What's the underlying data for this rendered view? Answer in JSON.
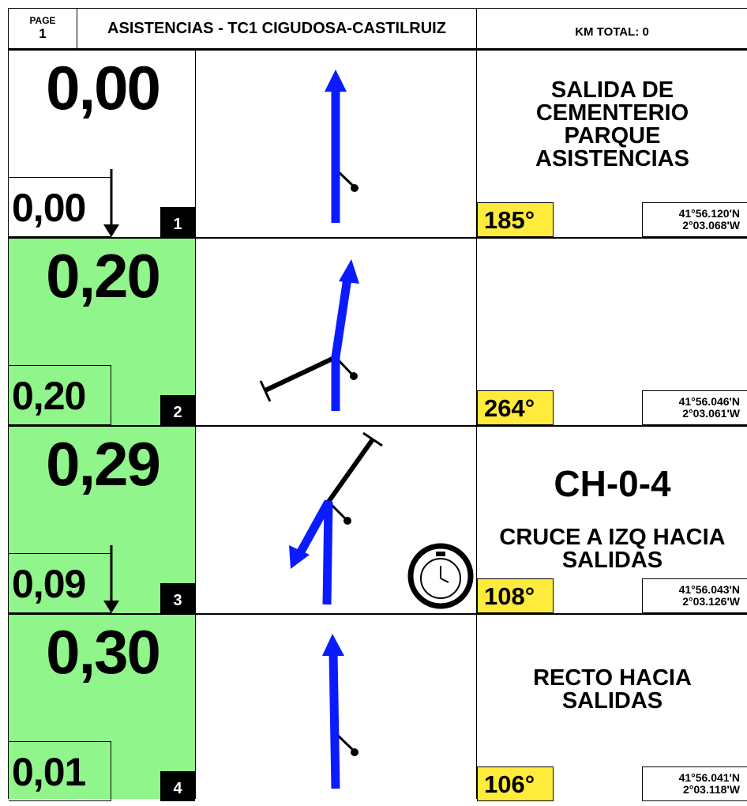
{
  "header": {
    "page_label": "PAGE",
    "page_number": "1",
    "title": "ASISTENCIAS - TC1 CIGUDOSA-CASTILRUIZ",
    "km_total": "KM TOTAL: 0"
  },
  "rows": [
    {
      "number": "1",
      "total": "0,00",
      "partial": "0,00",
      "heading": "185°",
      "lat": "41°56.120'N",
      "lon": "2°03.068'W",
      "instruction": [
        "SALIDA DE",
        "CEMENTERIO",
        "PARQUE",
        "ASISTENCIAS"
      ]
    },
    {
      "number": "2",
      "total": "0,20",
      "partial": "0,20",
      "heading": "264°",
      "lat": "41°56.046'N",
      "lon": "2°03.061'W"
    },
    {
      "number": "3",
      "total": "0,29",
      "partial": "0,09",
      "heading": "108°",
      "lat": "41°56.043'N",
      "lon": "2°03.126'W",
      "road": "CH-0-4",
      "instruction": [
        "CRUCE A IZQ HACIA",
        "SALIDAS"
      ]
    },
    {
      "number": "4",
      "total": "0,30",
      "partial": "0,01",
      "heading": "106°",
      "lat": "41°56.041'N",
      "lon": "2°03.118'W",
      "instruction": [
        "RECTO HACIA",
        "SALIDAS"
      ]
    }
  ]
}
